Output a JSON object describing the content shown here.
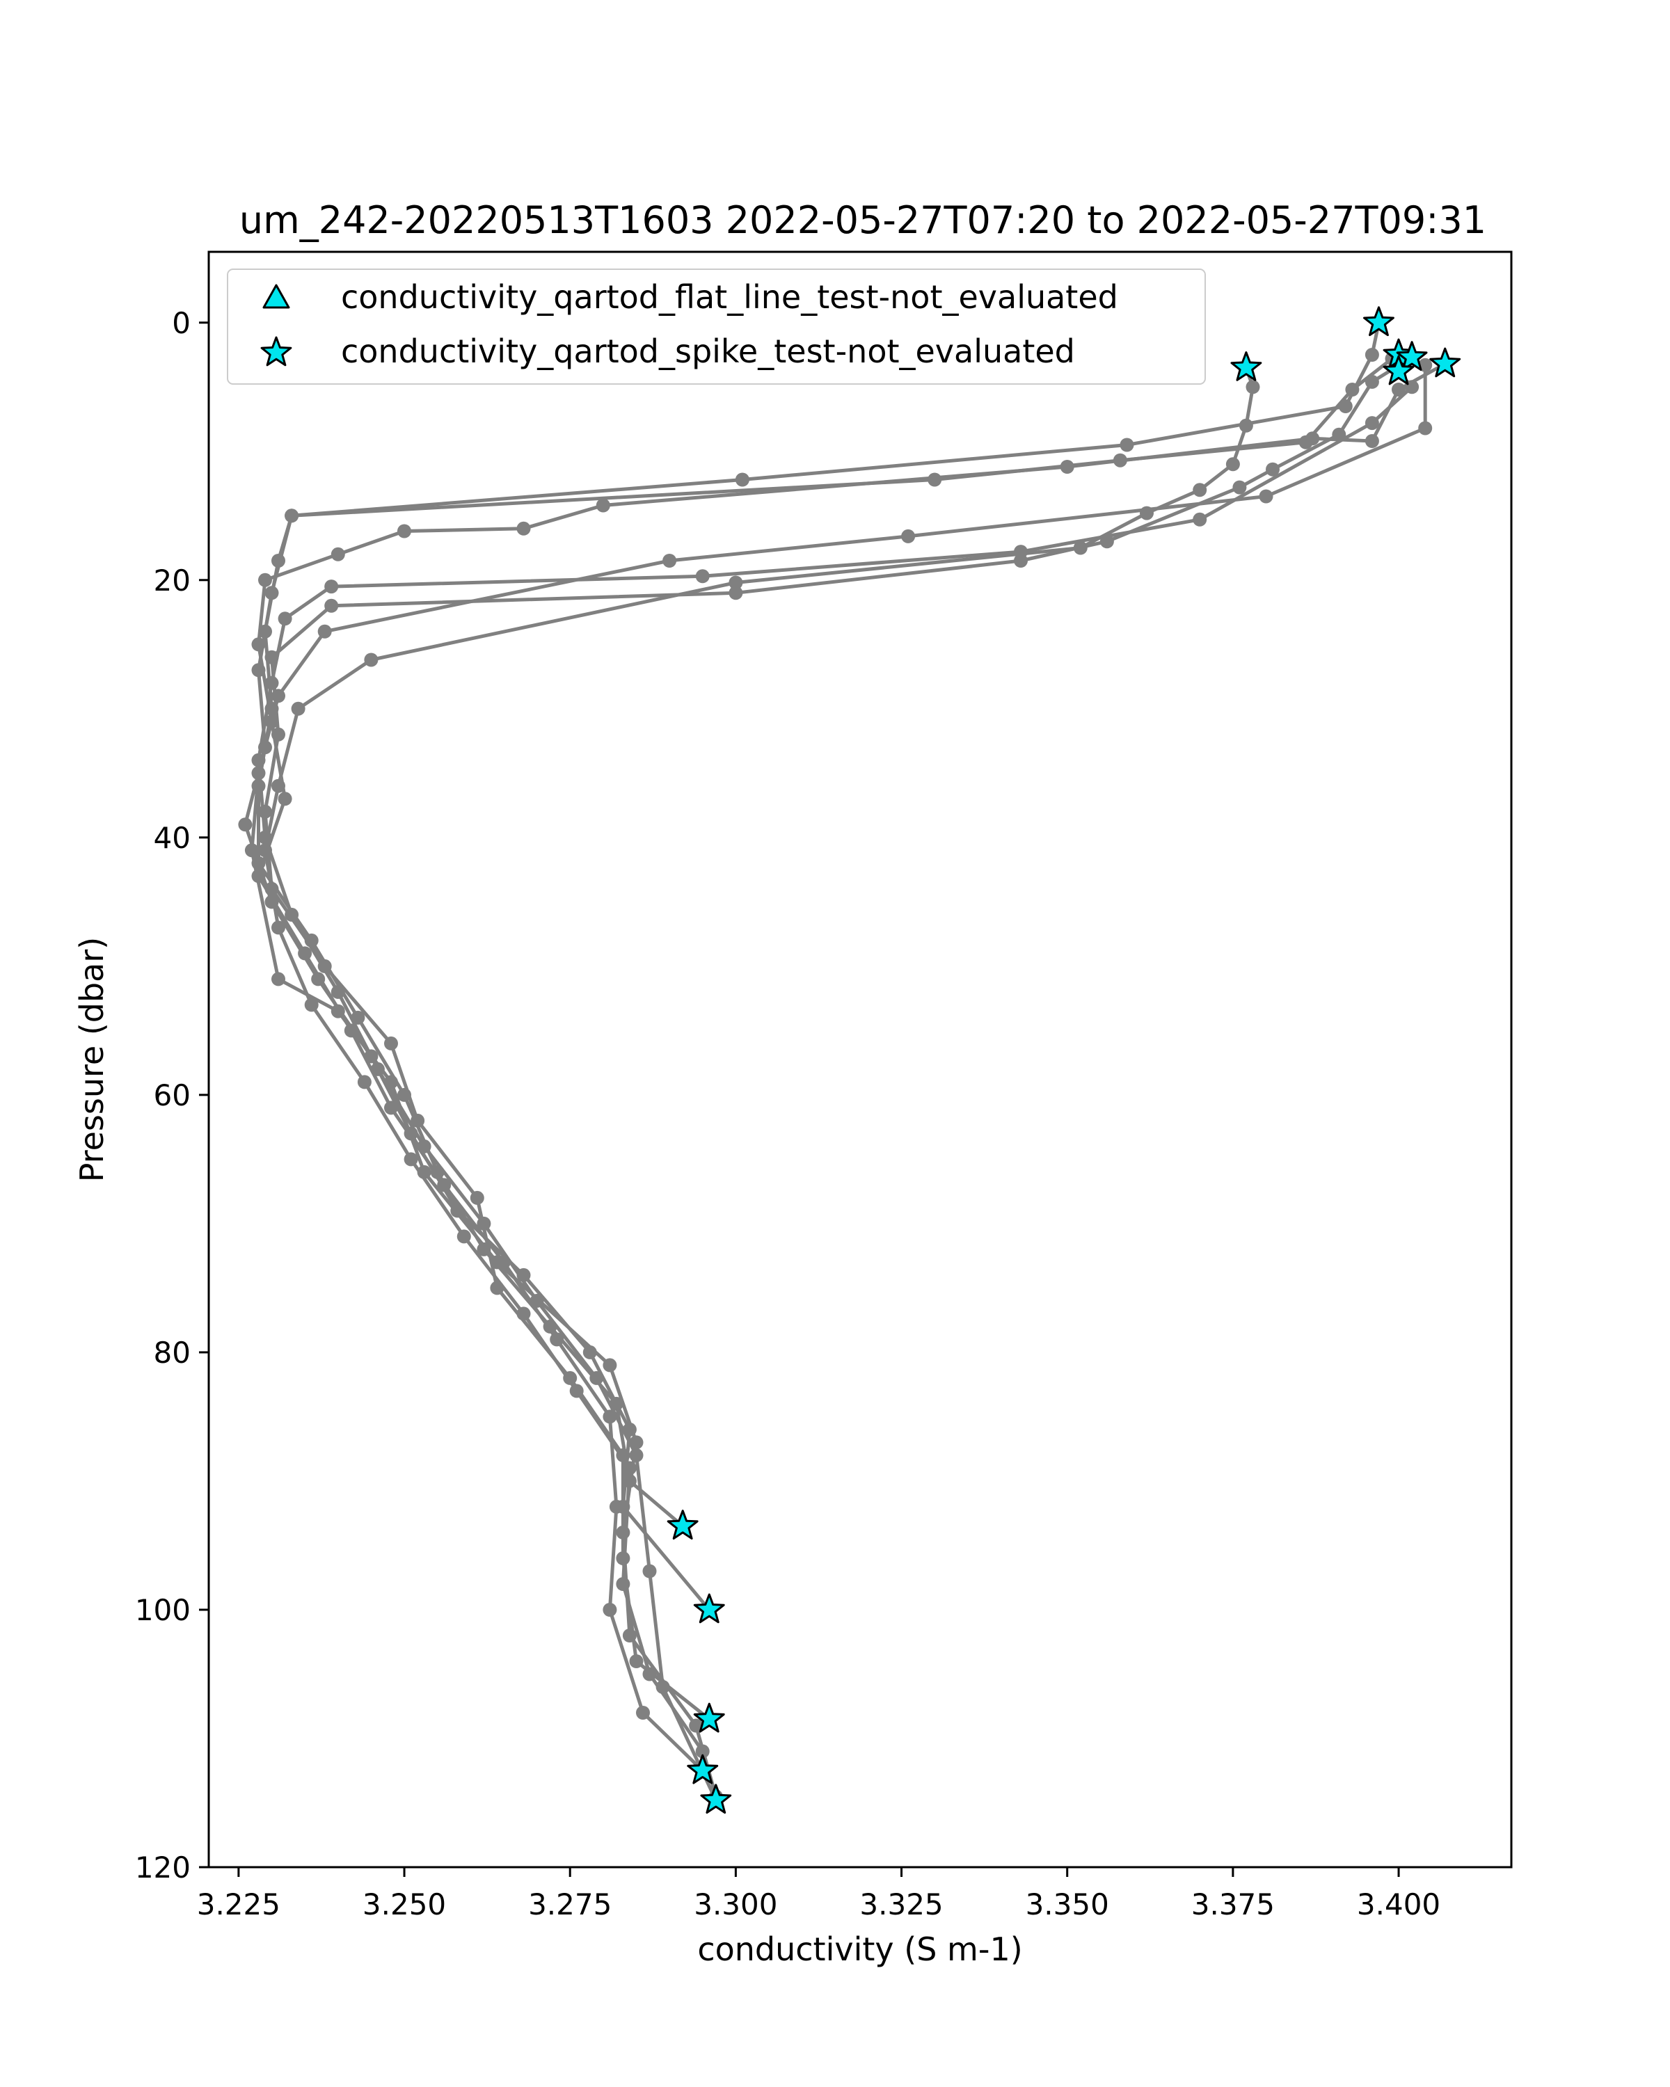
{
  "chart_data": {
    "type": "scatter",
    "title": "um_242-20220513T1603 2022-05-27T07:20 to 2022-05-27T09:31",
    "xlabel": "conductivity (S m-1)",
    "ylabel": "Pressure (dbar)",
    "xlim": [
      3.2205,
      3.417
    ],
    "ylim": [
      120,
      -5.5
    ],
    "y_inverted": true,
    "grid": false,
    "legend_position": "upper-left",
    "x_ticks": [
      "3.225",
      "3.250",
      "3.275",
      "3.300",
      "3.325",
      "3.350",
      "3.375",
      "3.400"
    ],
    "x_tick_values": [
      3.225,
      3.25,
      3.275,
      3.3,
      3.325,
      3.35,
      3.375,
      3.4
    ],
    "y_ticks": [
      "0",
      "20",
      "40",
      "60",
      "80",
      "100",
      "120"
    ],
    "y_tick_values": [
      0,
      20,
      40,
      60,
      80,
      100,
      120
    ],
    "profile_color": "#808080",
    "flag_color": "#00e5ee",
    "profiles": [
      {
        "points": [
          [
            3.397,
            0
          ],
          [
            3.396,
            2.5
          ],
          [
            3.392,
            6.5
          ],
          [
            3.359,
            9.5
          ],
          [
            3.301,
            12.2
          ],
          [
            3.233,
            15
          ],
          [
            3.231,
            18.5
          ],
          [
            3.229,
            24
          ],
          [
            3.23,
            30
          ],
          [
            3.228,
            36
          ],
          [
            3.228,
            42
          ],
          [
            3.236,
            48
          ],
          [
            3.243,
            54
          ],
          [
            3.25,
            60
          ],
          [
            3.255,
            66
          ],
          [
            3.262,
            72
          ],
          [
            3.272,
            78
          ],
          [
            3.282,
            84
          ],
          [
            3.284,
            90
          ],
          [
            3.292,
            93.5
          ]
        ]
      },
      {
        "points": [
          [
            3.399,
            2.8
          ],
          [
            3.393,
            5.2
          ],
          [
            3.386,
            9.3
          ],
          [
            3.358,
            10.7
          ],
          [
            3.33,
            12.2
          ],
          [
            3.233,
            15
          ],
          [
            3.23,
            21
          ],
          [
            3.228,
            27
          ],
          [
            3.229,
            33
          ],
          [
            3.226,
            39
          ],
          [
            3.23,
            45
          ],
          [
            3.237,
            51
          ],
          [
            3.245,
            57
          ],
          [
            3.251,
            63
          ],
          [
            3.258,
            69
          ],
          [
            3.268,
            74
          ],
          [
            3.278,
            80
          ],
          [
            3.284,
            86
          ],
          [
            3.283,
            92
          ],
          [
            3.296,
            100
          ]
        ]
      },
      {
        "points": [
          [
            3.402,
            2.7
          ],
          [
            3.396,
            4.6
          ],
          [
            3.391,
            8.7
          ],
          [
            3.381,
            11.4
          ],
          [
            3.376,
            12.8
          ],
          [
            3.356,
            17
          ],
          [
            3.343,
            18.5
          ],
          [
            3.3,
            21
          ],
          [
            3.239,
            22
          ],
          [
            3.23,
            26
          ],
          [
            3.231,
            32
          ],
          [
            3.229,
            38
          ],
          [
            3.23,
            44
          ],
          [
            3.238,
            50
          ],
          [
            3.248,
            56
          ],
          [
            3.252,
            62
          ],
          [
            3.261,
            68
          ],
          [
            3.264,
            75
          ],
          [
            3.275,
            82
          ],
          [
            3.283,
            88
          ],
          [
            3.283,
            96
          ],
          [
            3.285,
            104
          ],
          [
            3.296,
            108.5
          ]
        ]
      },
      {
        "points": [
          [
            3.407,
            3.2
          ],
          [
            3.4,
            5.2
          ],
          [
            3.396,
            9.2
          ],
          [
            3.387,
            9
          ],
          [
            3.35,
            11.2
          ],
          [
            3.28,
            14.2
          ],
          [
            3.268,
            16
          ],
          [
            3.25,
            16.2
          ],
          [
            3.24,
            18
          ],
          [
            3.229,
            20
          ],
          [
            3.228,
            25
          ],
          [
            3.23,
            31
          ],
          [
            3.232,
            37
          ],
          [
            3.228,
            43
          ],
          [
            3.235,
            49
          ],
          [
            3.242,
            55
          ],
          [
            3.248,
            61
          ],
          [
            3.256,
            67
          ],
          [
            3.265,
            73
          ],
          [
            3.273,
            79
          ],
          [
            3.281,
            85
          ],
          [
            3.282,
            92
          ],
          [
            3.281,
            100
          ],
          [
            3.286,
            108
          ],
          [
            3.295,
            112.5
          ]
        ]
      },
      {
        "points": [
          [
            3.4,
            3.8
          ],
          [
            3.402,
            5
          ],
          [
            3.396,
            7.8
          ],
          [
            3.37,
            15.3
          ],
          [
            3.343,
            17.8
          ],
          [
            3.295,
            19.7
          ],
          [
            3.239,
            20.5
          ],
          [
            3.232,
            23
          ],
          [
            3.23,
            28
          ],
          [
            3.228,
            34
          ],
          [
            3.229,
            40
          ],
          [
            3.233,
            46
          ],
          [
            3.24,
            52
          ],
          [
            3.246,
            58
          ],
          [
            3.253,
            64
          ],
          [
            3.262,
            70
          ],
          [
            3.27,
            76
          ],
          [
            3.279,
            82
          ],
          [
            3.285,
            88
          ],
          [
            3.287,
            97
          ],
          [
            3.289,
            106
          ],
          [
            3.297,
            114.8
          ]
        ]
      },
      {
        "points": [
          [
            3.377,
            3.5
          ],
          [
            3.378,
            5
          ],
          [
            3.377,
            8
          ],
          [
            3.375,
            11
          ],
          [
            3.37,
            13
          ],
          [
            3.362,
            14.8
          ],
          [
            3.352,
            17.5
          ],
          [
            3.3,
            20.2
          ],
          [
            3.245,
            26.2
          ],
          [
            3.234,
            30
          ],
          [
            3.231,
            36
          ],
          [
            3.229,
            41
          ],
          [
            3.231,
            47
          ],
          [
            3.236,
            53
          ],
          [
            3.244,
            59
          ],
          [
            3.251,
            65
          ],
          [
            3.259,
            71
          ],
          [
            3.268,
            77
          ],
          [
            3.276,
            83
          ],
          [
            3.284,
            89
          ],
          [
            3.283,
            98
          ],
          [
            3.287,
            105
          ],
          [
            3.295,
            111
          ]
        ]
      },
      {
        "points": [
          [
            3.404,
            3.3
          ],
          [
            3.404,
            8.2
          ],
          [
            3.38,
            13.5
          ],
          [
            3.326,
            16.6
          ],
          [
            3.29,
            18.5
          ],
          [
            3.238,
            24
          ],
          [
            3.231,
            29
          ],
          [
            3.228,
            35
          ],
          [
            3.227,
            41
          ],
          [
            3.231,
            51
          ],
          [
            3.24,
            53.5
          ],
          [
            3.248,
            59
          ],
          [
            3.253,
            66
          ],
          [
            3.264,
            73
          ],
          [
            3.281,
            81
          ],
          [
            3.285,
            87
          ],
          [
            3.283,
            94
          ],
          [
            3.284,
            102
          ],
          [
            3.294,
            109
          ],
          [
            3.297,
            114.5
          ]
        ]
      }
    ],
    "flags": [
      {
        "name": "conductivity_qartod_flat_line_test-not_evaluated",
        "marker": "triangle",
        "points": []
      },
      {
        "name": "conductivity_qartod_spike_test-not_evaluated",
        "marker": "star",
        "points": [
          [
            3.397,
            0
          ],
          [
            3.4,
            2.5
          ],
          [
            3.402,
            2.7
          ],
          [
            3.407,
            3.2
          ],
          [
            3.377,
            3.5
          ],
          [
            3.4,
            3.8
          ],
          [
            3.292,
            93.5
          ],
          [
            3.296,
            100
          ],
          [
            3.296,
            108.5
          ],
          [
            3.295,
            112.5
          ],
          [
            3.297,
            114.8
          ]
        ]
      }
    ]
  }
}
